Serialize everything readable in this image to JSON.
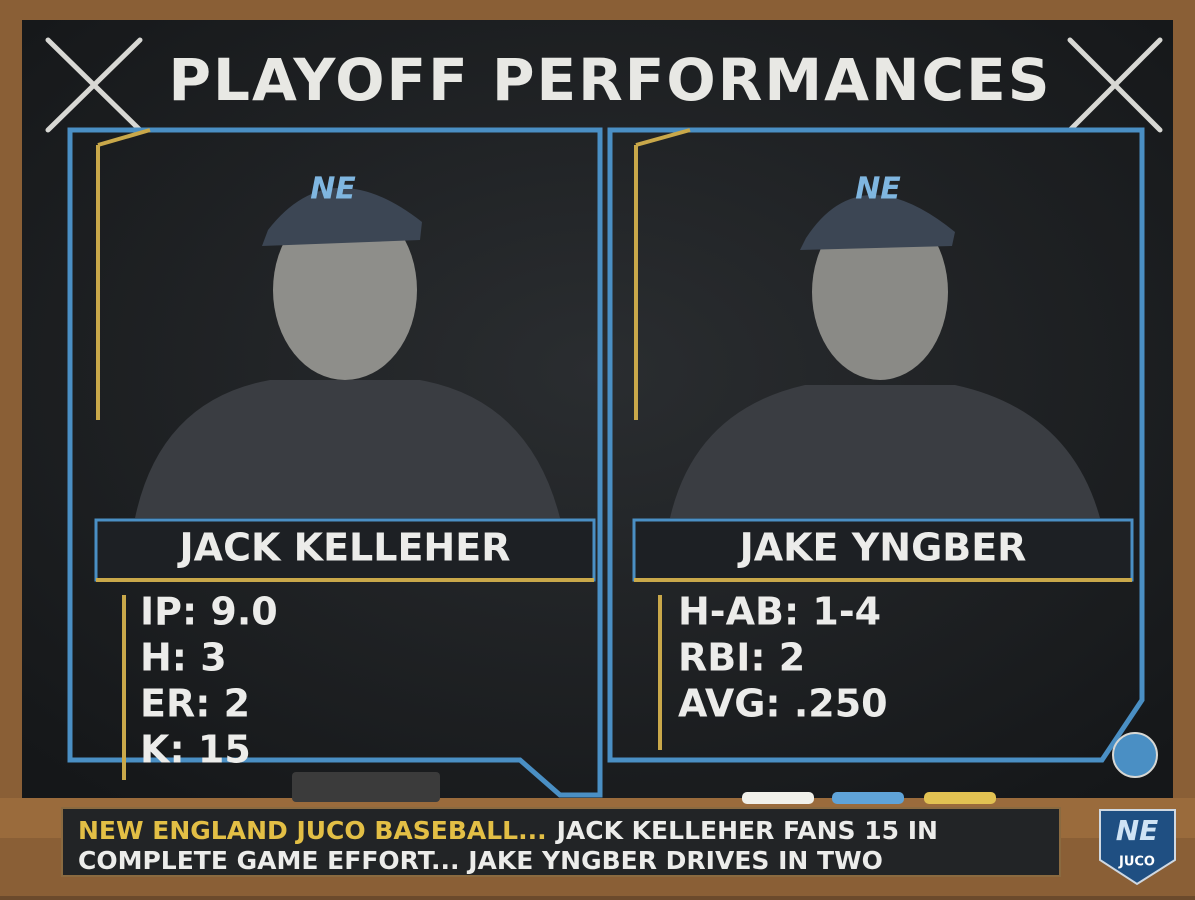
{
  "header": {
    "title": "PLAYOFF PERFORMANCES"
  },
  "players": [
    {
      "cap": "NE",
      "name": "JACK KELLEHER",
      "stats": [
        "IP: 9.0",
        "H: 3",
        "ER: 2",
        "K: 15"
      ]
    },
    {
      "cap": "NE",
      "name": "JAKE YNGBER",
      "stats": [
        "H-AB: 1-4",
        "RBI: 2",
        "AVG: .250"
      ]
    }
  ],
  "ticker": {
    "lead": "NEW ENGLAND JUCO BASEBALL...",
    "line1": "JACK KELLEHER FANS 15 IN",
    "line2": "COMPLETE GAME EFFORT... JAKE YNGBER DRIVES IN TWO"
  },
  "logo": {
    "mark": "NE",
    "label": "JUCO"
  }
}
